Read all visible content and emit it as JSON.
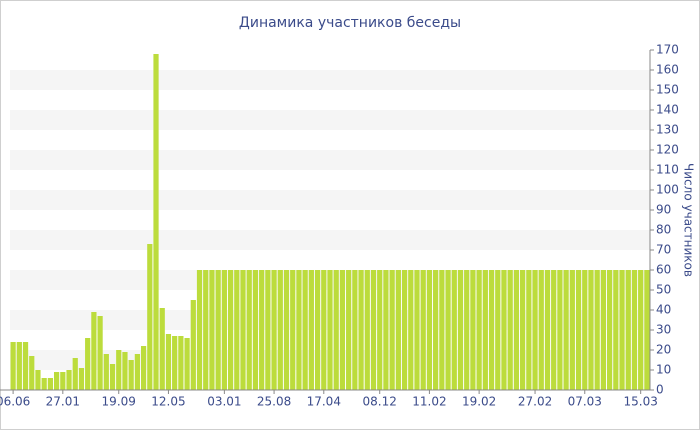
{
  "chart_data": {
    "type": "bar",
    "title": "Динамика участников беседы",
    "y_label": "Число участников",
    "categories": [
      "06.06",
      null,
      null,
      null,
      null,
      null,
      null,
      null,
      "27.01",
      null,
      null,
      null,
      null,
      null,
      null,
      null,
      null,
      "19.09",
      null,
      null,
      null,
      null,
      null,
      null,
      null,
      "12.05",
      null,
      null,
      null,
      null,
      null,
      null,
      null,
      null,
      "03.01",
      null,
      null,
      null,
      null,
      null,
      null,
      null,
      "25.08",
      null,
      null,
      null,
      null,
      null,
      null,
      null,
      "17.04",
      null,
      null,
      null,
      null,
      null,
      null,
      null,
      null,
      "08.12",
      null,
      null,
      null,
      null,
      null,
      null,
      null,
      "11.02",
      null,
      null,
      null,
      null,
      null,
      null,
      null,
      "19.02",
      null,
      null,
      null,
      null,
      null,
      null,
      null,
      null,
      "27.02",
      null,
      null,
      null,
      null,
      null,
      null,
      null,
      "07.03",
      null,
      null,
      null,
      null,
      null,
      null,
      null,
      null,
      "15.03",
      null
    ],
    "values": [
      24,
      24,
      24,
      17,
      10,
      6,
      6,
      9,
      9,
      10,
      16,
      11,
      26,
      39,
      37,
      18,
      13,
      20,
      19,
      15,
      18,
      22,
      73,
      168,
      41,
      28,
      27,
      27,
      26,
      45,
      60,
      60,
      60,
      60,
      60,
      60,
      60,
      60,
      60,
      60,
      60,
      60,
      60,
      60,
      60,
      60,
      60,
      60,
      60,
      60,
      60,
      60,
      60,
      60,
      60,
      60,
      60,
      60,
      60,
      60,
      60,
      60,
      60,
      60,
      60,
      60,
      60,
      60,
      60,
      60,
      60,
      60,
      60,
      60,
      60,
      60,
      60,
      60,
      60,
      60,
      60,
      60,
      60,
      60,
      60,
      60,
      60,
      60,
      60,
      60,
      60,
      60,
      60,
      60,
      60,
      60,
      60,
      60,
      60,
      60,
      60,
      60,
      60
    ],
    "color": "#bcdc3c",
    "ylim": [
      0,
      170
    ],
    "yticks": [
      0,
      10,
      20,
      30,
      40,
      50,
      60,
      70,
      80,
      90,
      100,
      110,
      120,
      130,
      140,
      150,
      160,
      170
    ],
    "grid": true
  }
}
